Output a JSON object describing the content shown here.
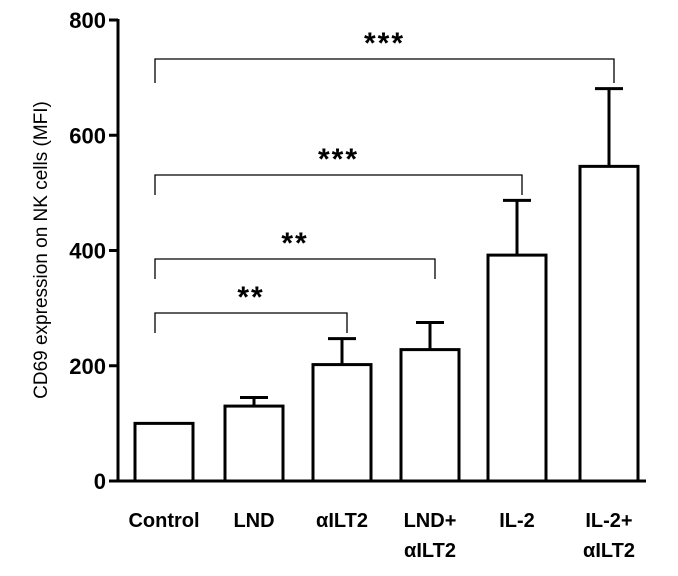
{
  "chart_data": {
    "type": "bar",
    "title": "",
    "xlabel": "",
    "ylabel": "CD69 expression on NK cells (MFI)",
    "ylim": [
      0,
      800
    ],
    "yticks": [
      0,
      200,
      400,
      600,
      800
    ],
    "categories": [
      [
        "Control"
      ],
      [
        "LND"
      ],
      [
        "αILT2"
      ],
      [
        "LND+",
        "αILT2"
      ],
      [
        "IL-2"
      ],
      [
        "IL-2+",
        "αILT2"
      ]
    ],
    "values": [
      100,
      130,
      202,
      228,
      392,
      546
    ],
    "errors": [
      0,
      15,
      45,
      47,
      95,
      135
    ],
    "bar_fill": "#ffffff",
    "bar_stroke": "#000000",
    "significance": [
      {
        "from": 0,
        "to": 2,
        "label": "**"
      },
      {
        "from": 0,
        "to": 3,
        "label": "**"
      },
      {
        "from": 0,
        "to": 4,
        "label": "***"
      },
      {
        "from": 0,
        "to": 5,
        "label": "***"
      }
    ]
  }
}
